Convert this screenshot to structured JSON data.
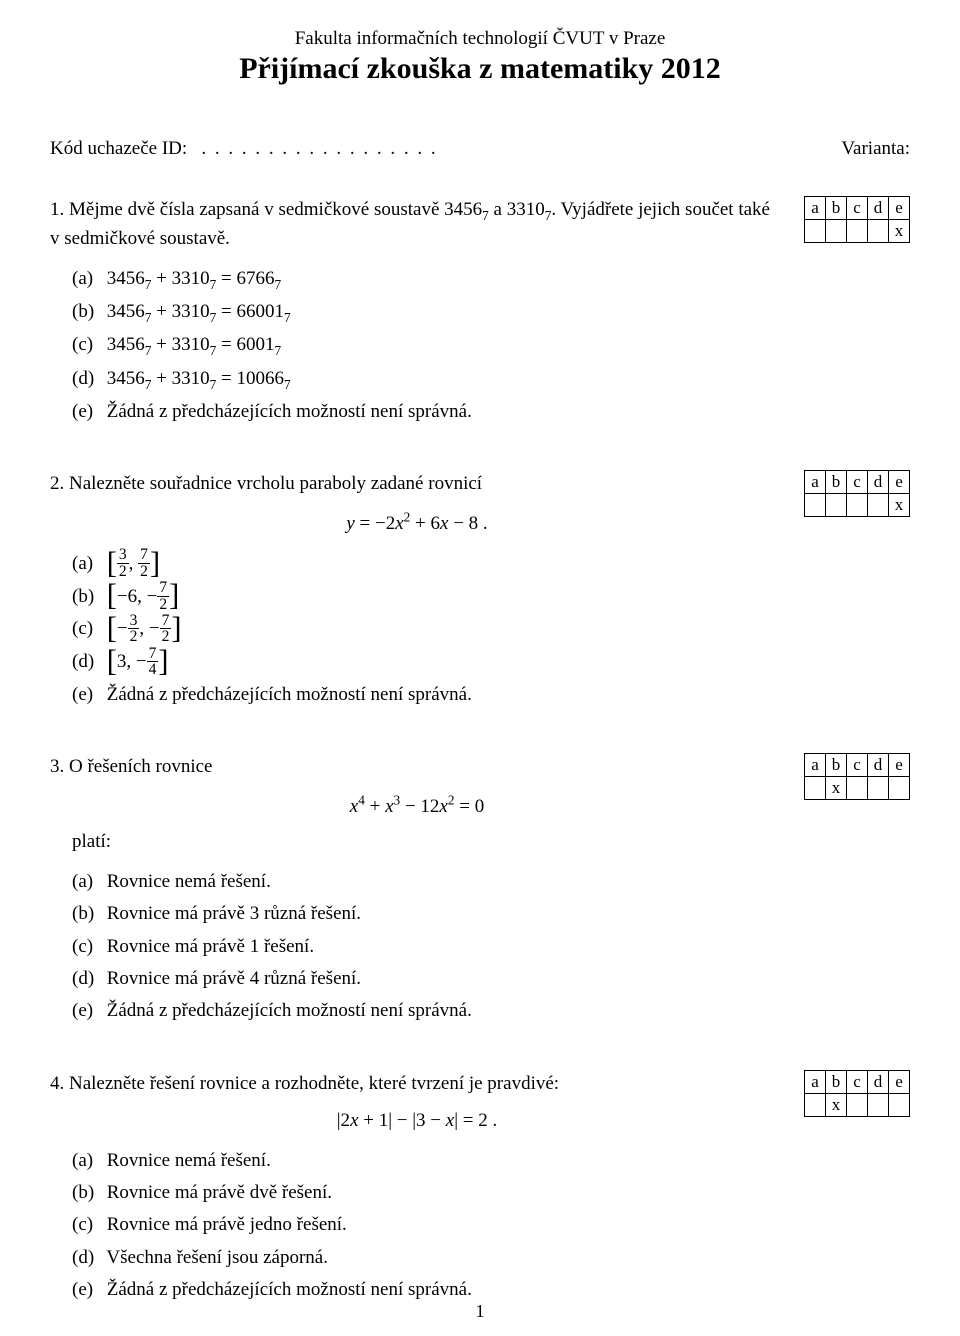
{
  "header": {
    "institution": "Fakulta informačních technologií ČVUT v Praze",
    "title": "Přijímací zkouška z matematiky 2012"
  },
  "info": {
    "id_label": "Kód uchazeče ID:",
    "dots": ". . . . . . . . . . . . . . . . . .",
    "variant_label": "Varianta:"
  },
  "answer_grid": {
    "headers": [
      "a",
      "b",
      "c",
      "d",
      "e"
    ]
  },
  "questions": [
    {
      "num": "1.",
      "text_html": "Mějme dvě čísla zapsaná v sedmičkové soustavě 3456<sub>7</sub> a 3310<sub>7</sub>. Vyjádřete jejich součet také v sedmičkové soustavě.",
      "equation": "",
      "equation_after_intro": "",
      "options": [
        "3456<sub>7</sub> + 3310<sub>7</sub> = 6766<sub>7</sub>",
        "3456<sub>7</sub> + 3310<sub>7</sub> = 66001<sub>7</sub>",
        "3456<sub>7</sub> + 3310<sub>7</sub> = 6001<sub>7</sub>",
        "3456<sub>7</sub> + 3310<sub>7</sub> = 10066<sub>7</sub>",
        "Žádná z předcházejících možností není správná."
      ],
      "answer_mark_col": 4
    },
    {
      "num": "2.",
      "text_html": "Nalezněte souřadnice vrcholu paraboly zadané rovnicí",
      "equation": "<span class='math'>y <span class='up'>=</span> <span class='up'>−2</span>x<sup>2</sup> <span class='up'>+ 6</span>x <span class='up'>− 8 .</span></span>",
      "equation_after_intro": "",
      "options": [
        "<span class='br-l'>[</span><span class='frac'><span class='n'>3</span><span class='d'>2</span></span>, <span class='frac'><span class='n'>7</span><span class='d'>2</span></span><span class='br-r'>]</span>",
        "<span class='br-l'>[</span>−6, −<span class='frac'><span class='n'>7</span><span class='d'>2</span></span><span class='br-r'>]</span>",
        "<span class='br-l'>[</span>−<span class='frac'><span class='n'>3</span><span class='d'>2</span></span>, −<span class='frac'><span class='n'>7</span><span class='d'>2</span></span><span class='br-r'>]</span>",
        "<span class='br-l'>[</span>3, −<span class='frac'><span class='n'>7</span><span class='d'>4</span></span><span class='br-r'>]</span>",
        "Žádná z předcházejících možností není správná."
      ],
      "answer_mark_col": 4
    },
    {
      "num": "3.",
      "text_html": "O řešeních rovnice",
      "equation": "<span class='math'>x<sup>4</sup> <span class='up'>+</span> x<sup>3</sup> <span class='up'>− 12</span>x<sup>2</sup> <span class='up'>= 0</span></span>",
      "equation_after_intro": "platí:",
      "options": [
        "Rovnice nemá řešení.",
        "Rovnice má právě 3 různá řešení.",
        "Rovnice má právě 1 řešení.",
        "Rovnice má právě 4 různá řešení.",
        "Žádná z předcházejících možností není správná."
      ],
      "answer_mark_col": 1
    },
    {
      "num": "4.",
      "text_html": "Nalezněte řešení rovnice a rozhodněte, které tvrzení je pravdivé:",
      "equation": "<span class='math'><span class='up'>|2</span>x <span class='up'>+ 1| − |3 −</span> x<span class='up'>| = 2 .</span></span>",
      "equation_after_intro": "",
      "options": [
        "Rovnice nemá řešení.",
        "Rovnice má právě dvě řešení.",
        "Rovnice má právě jedno řešení.",
        "Všechna řešení jsou záporná.",
        "Žádná z předcházejících možností není správná."
      ],
      "answer_mark_col": 1
    }
  ],
  "option_letters": [
    "(a)",
    "(b)",
    "(c)",
    "(d)",
    "(e)"
  ],
  "mark_symbol": "x",
  "page_number": "1"
}
